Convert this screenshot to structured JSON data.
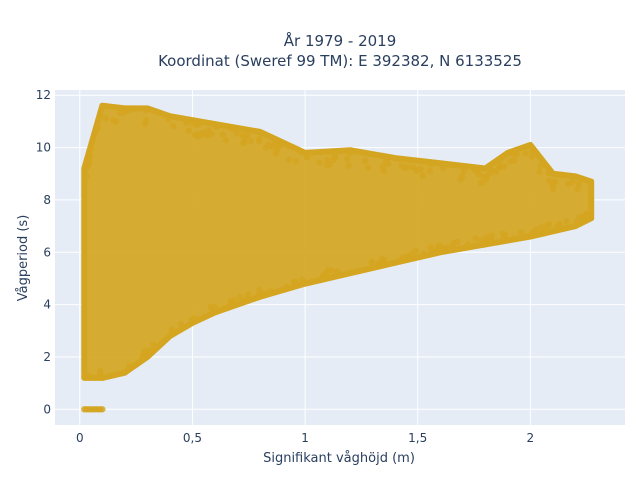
{
  "chart_data": {
    "type": "scatter",
    "title_line1": "År 1979 - 2019",
    "title_line2": "Koordinat (Sweref 99 TM): E 392382, N 6133525",
    "xlabel": "Signifikant våghöjd (m)",
    "ylabel": "Vågperiod (s)",
    "xlim": [
      -0.11,
      2.42
    ],
    "ylim": [
      -0.6,
      12.2
    ],
    "xticks": [
      0,
      0.5,
      1,
      1.5,
      2
    ],
    "xtick_labels": [
      "0",
      "0,5",
      "1",
      "1,5",
      "2"
    ],
    "yticks": [
      0,
      2,
      4,
      6,
      8,
      10,
      12
    ],
    "ytick_labels": [
      "0",
      "2",
      "4",
      "6",
      "8",
      "10",
      "12"
    ],
    "grid": true,
    "legend": "none",
    "colors": {
      "marker": "#d4a520",
      "plot_bg": "#e5ecf6",
      "grid": "#ffffff",
      "text": "#2a3f5f"
    },
    "bounds_upper": [
      [
        0.02,
        9.2
      ],
      [
        0.1,
        11.6
      ],
      [
        0.2,
        11.5
      ],
      [
        0.3,
        11.5
      ],
      [
        0.4,
        11.2
      ],
      [
        0.6,
        10.9
      ],
      [
        0.8,
        10.6
      ],
      [
        1.0,
        9.8
      ],
      [
        1.2,
        9.9
      ],
      [
        1.4,
        9.6
      ],
      [
        1.6,
        9.4
      ],
      [
        1.8,
        9.2
      ],
      [
        1.9,
        9.8
      ],
      [
        2.0,
        10.1
      ],
      [
        2.1,
        9.0
      ],
      [
        2.2,
        8.9
      ],
      [
        2.27,
        8.7
      ]
    ],
    "bounds_lower": [
      [
        0.02,
        1.2
      ],
      [
        0.1,
        1.2
      ],
      [
        0.2,
        1.4
      ],
      [
        0.3,
        2.0
      ],
      [
        0.4,
        2.8
      ],
      [
        0.5,
        3.3
      ],
      [
        0.6,
        3.7
      ],
      [
        0.8,
        4.3
      ],
      [
        1.0,
        4.8
      ],
      [
        1.2,
        5.2
      ],
      [
        1.4,
        5.6
      ],
      [
        1.6,
        6.0
      ],
      [
        1.8,
        6.3
      ],
      [
        2.0,
        6.6
      ],
      [
        2.2,
        7.0
      ],
      [
        2.27,
        7.3
      ]
    ],
    "zero_period_points": [
      [
        0.02,
        0
      ],
      [
        0.03,
        0
      ],
      [
        0.04,
        0
      ],
      [
        0.05,
        0
      ],
      [
        0.06,
        0
      ],
      [
        0.07,
        0
      ],
      [
        0.08,
        0
      ],
      [
        0.09,
        0
      ],
      [
        0.1,
        0
      ]
    ]
  }
}
